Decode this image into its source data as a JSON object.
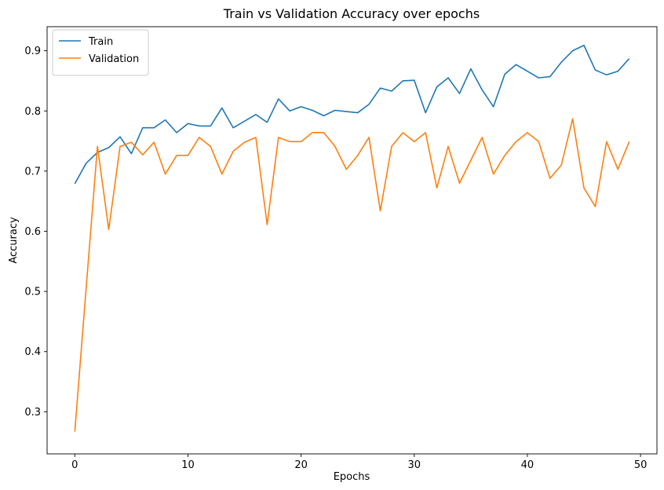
{
  "chart_data": {
    "type": "line",
    "title": "Train vs Validation Accuracy over epochs",
    "xlabel": "Epochs",
    "ylabel": "Accuracy",
    "xlim": [
      -2.45,
      51.45
    ],
    "ylim": [
      0.23,
      0.94
    ],
    "xticks": [
      0,
      10,
      20,
      30,
      40,
      50
    ],
    "yticks": [
      0.3,
      0.4,
      0.5,
      0.6,
      0.7,
      0.8,
      0.9
    ],
    "grid": false,
    "legend_position": "top-left",
    "x": [
      0,
      1,
      2,
      3,
      4,
      5,
      6,
      7,
      8,
      9,
      10,
      11,
      12,
      13,
      14,
      15,
      16,
      17,
      18,
      19,
      20,
      21,
      22,
      23,
      24,
      25,
      26,
      27,
      28,
      29,
      30,
      31,
      32,
      33,
      34,
      35,
      36,
      37,
      38,
      39,
      40,
      41,
      42,
      43,
      44,
      45,
      46,
      47,
      48,
      49
    ],
    "series": [
      {
        "name": "Train",
        "color": "#1f77b4",
        "values": [
          0.679,
          0.713,
          0.731,
          0.739,
          0.757,
          0.729,
          0.772,
          0.772,
          0.785,
          0.764,
          0.779,
          0.775,
          0.775,
          0.805,
          0.772,
          0.783,
          0.794,
          0.781,
          0.82,
          0.8,
          0.807,
          0.801,
          0.792,
          0.801,
          0.799,
          0.797,
          0.811,
          0.838,
          0.833,
          0.85,
          0.851,
          0.797,
          0.84,
          0.855,
          0.829,
          0.87,
          0.835,
          0.807,
          0.861,
          0.877,
          0.866,
          0.855,
          0.857,
          0.881,
          0.9,
          0.909,
          0.868,
          0.86,
          0.866,
          0.887
        ]
      },
      {
        "name": "Validation",
        "color": "#ff7f0e",
        "values": [
          0.267,
          0.505,
          0.741,
          0.603,
          0.741,
          0.748,
          0.727,
          0.748,
          0.695,
          0.726,
          0.726,
          0.756,
          0.741,
          0.695,
          0.733,
          0.748,
          0.756,
          0.611,
          0.756,
          0.749,
          0.749,
          0.764,
          0.764,
          0.741,
          0.703,
          0.726,
          0.756,
          0.634,
          0.741,
          0.764,
          0.749,
          0.764,
          0.672,
          0.741,
          0.68,
          0.718,
          0.756,
          0.695,
          0.726,
          0.749,
          0.764,
          0.749,
          0.688,
          0.71,
          0.787,
          0.672,
          0.641,
          0.749,
          0.703,
          0.749
        ]
      }
    ]
  }
}
